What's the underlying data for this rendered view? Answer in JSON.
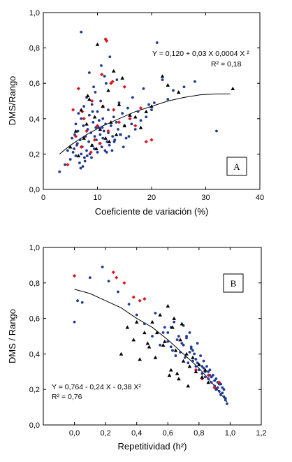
{
  "chart_data": [
    {
      "type": "scatter",
      "panel_label": "A",
      "xlabel": "Coeficiente de variación (%)",
      "ylabel": "DMS/Rango",
      "xlim": [
        0,
        40
      ],
      "ylim": [
        0.0,
        1.0
      ],
      "xticks": [
        "0",
        "10",
        "20",
        "30",
        "40"
      ],
      "yticks": [
        "0,0",
        "0,2",
        "0,4",
        "0,6",
        "0,8",
        "1,0"
      ],
      "equation": "Y = 0,120 + 0,03 X 0,0004 X ²",
      "r2": "R² = 0,18",
      "grid": false,
      "series": [
        {
          "marker": "circle",
          "color": "#1f3a93",
          "x": [
            3,
            4,
            4.5,
            5,
            5.3,
            5.5,
            5.8,
            6,
            6,
            6.2,
            6.4,
            6.5,
            6.7,
            6.8,
            7,
            7,
            7.2,
            7.4,
            7.5,
            7.6,
            7.8,
            8,
            8,
            8.2,
            8.4,
            8.5,
            8.6,
            8.8,
            9,
            9,
            9.2,
            9.4,
            9.5,
            9.6,
            9.8,
            10,
            10,
            10.2,
            10.4,
            10.5,
            10.6,
            10.8,
            11,
            11,
            11.2,
            11.4,
            11.5,
            11.6,
            11.8,
            12,
            12,
            12.2,
            12.5,
            12.8,
            13,
            13.2,
            13.5,
            13.8,
            14,
            14.3,
            14.6,
            15,
            15.3,
            15.6,
            16,
            16.5,
            17,
            17.5,
            18,
            18.5,
            19,
            19.5,
            20,
            21,
            22,
            23,
            24,
            26,
            28,
            32,
            7,
            8.5,
            9.3,
            10.7,
            12.3,
            13.6,
            11.3,
            6.9,
            7.7,
            8.9,
            9.7,
            10.3,
            11.7,
            13.1,
            14.8,
            15.8,
            6.3,
            7.3,
            8.1,
            9.1,
            10.9,
            12.7,
            14.2,
            16.3,
            5.7,
            20.5
          ],
          "y": [
            0.1,
            0.14,
            0.22,
            0.17,
            0.29,
            0.21,
            0.31,
            0.19,
            0.37,
            0.25,
            0.33,
            0.43,
            0.15,
            0.28,
            0.2,
            0.4,
            0.24,
            0.36,
            0.47,
            0.18,
            0.3,
            0.22,
            0.52,
            0.34,
            0.27,
            0.42,
            0.2,
            0.32,
            0.25,
            0.48,
            0.38,
            0.23,
            0.3,
            0.55,
            0.28,
            0.21,
            0.44,
            0.35,
            0.26,
            0.31,
            0.5,
            0.24,
            0.29,
            0.4,
            0.33,
            0.22,
            0.37,
            0.6,
            0.27,
            0.32,
            0.45,
            0.25,
            0.36,
            0.3,
            0.41,
            0.28,
            0.38,
            0.34,
            0.49,
            0.31,
            0.43,
            0.36,
            0.29,
            0.46,
            0.4,
            0.52,
            0.34,
            0.44,
            0.39,
            0.57,
            0.41,
            0.48,
            0.45,
            0.83,
            0.62,
            0.51,
            0.56,
            0.58,
            0.61,
            0.33,
            0.89,
            0.66,
            0.58,
            0.7,
            0.75,
            0.62,
            0.64,
            0.12,
            0.16,
            0.18,
            0.35,
            0.39,
            0.21,
            0.27,
            0.24,
            0.3,
            0.26,
            0.13,
            0.19,
            0.44,
            0.35,
            0.22,
            0.31,
            0.37,
            0.23,
            0.49
          ]
        },
        {
          "marker": "diamond",
          "color": "#e0141e",
          "x": [
            4.5,
            5.5,
            6,
            6.5,
            7,
            7.5,
            8,
            9,
            9.5,
            10,
            10.5,
            11,
            11.5,
            11.7,
            12,
            12.5,
            13,
            14,
            15,
            16,
            17,
            18,
            19,
            20,
            7.2,
            8.8,
            10.8,
            12.8
          ],
          "y": [
            0.14,
            0.45,
            0.3,
            0.57,
            0.24,
            0.4,
            0.33,
            0.5,
            0.28,
            0.36,
            0.26,
            0.47,
            0.85,
            0.84,
            0.33,
            0.6,
            0.45,
            0.38,
            0.58,
            0.4,
            0.36,
            0.46,
            0.27,
            0.28,
            0.44,
            0.21,
            0.65,
            0.61
          ]
        },
        {
          "marker": "triangle",
          "color": "#000000",
          "x": [
            5,
            6,
            6.5,
            7,
            7.5,
            8,
            8.5,
            9,
            9.5,
            10,
            10.5,
            11,
            11.5,
            12,
            12.5,
            13,
            13.5,
            14,
            15,
            16,
            17,
            18,
            19,
            20,
            22,
            23,
            25,
            35,
            9.8,
            12.2,
            14.6,
            8.2
          ],
          "y": [
            0.24,
            0.33,
            0.19,
            0.45,
            0.29,
            0.37,
            0.51,
            0.25,
            0.41,
            0.82,
            0.34,
            0.47,
            0.29,
            0.56,
            0.38,
            0.67,
            0.31,
            0.48,
            0.36,
            0.42,
            0.41,
            0.35,
            0.44,
            0.47,
            0.64,
            0.59,
            0.55,
            0.57,
            0.23,
            0.27,
            0.63,
            0.53
          ]
        }
      ],
      "trend": {
        "x": [
          3,
          5,
          8,
          11,
          14,
          17,
          20,
          23,
          26,
          29,
          32,
          34.5
        ],
        "y": [
          0.2,
          0.25,
          0.31,
          0.36,
          0.4,
          0.44,
          0.47,
          0.5,
          0.52,
          0.535,
          0.54,
          0.54
        ]
      }
    },
    {
      "type": "scatter",
      "panel_label": "B",
      "xlabel": "Repetitividad (h²)",
      "ylabel": "DMS / Rango",
      "xlim": [
        -0.2,
        1.2
      ],
      "ylim": [
        0.0,
        1.0
      ],
      "xticks": [
        "0,0",
        "0,2",
        "0,4",
        "0,6",
        "0,8",
        "1,0",
        "1,2"
      ],
      "xtick_values": [
        0.0,
        0.2,
        0.4,
        0.6,
        0.8,
        1.0,
        1.2
      ],
      "yticks": [
        "0,0",
        "0,2",
        "0,4",
        "0,6",
        "0,8",
        "1,0"
      ],
      "equation": "Y = 0,764 - 0,24 X - 0,38 X²",
      "r2": "R² = 0,76",
      "grid": false,
      "series": [
        {
          "marker": "circle",
          "color": "#1f3a93",
          "x": [
            0.0,
            0.02,
            0.05,
            0.1,
            0.18,
            0.22,
            0.28,
            0.35,
            0.4,
            0.45,
            0.5,
            0.52,
            0.55,
            0.58,
            0.6,
            0.62,
            0.64,
            0.66,
            0.68,
            0.7,
            0.71,
            0.72,
            0.73,
            0.74,
            0.75,
            0.76,
            0.77,
            0.78,
            0.79,
            0.8,
            0.81,
            0.82,
            0.83,
            0.84,
            0.85,
            0.86,
            0.87,
            0.88,
            0.89,
            0.9,
            0.91,
            0.92,
            0.93,
            0.94,
            0.95,
            0.96,
            0.97,
            0.98,
            0.65,
            0.69,
            0.74,
            0.78,
            0.82,
            0.86,
            0.9,
            0.93,
            0.96,
            0.72,
            0.76,
            0.8,
            0.84,
            0.88,
            0.92,
            0.95,
            0.62,
            0.67,
            0.7,
            0.75,
            0.79,
            0.83,
            0.87,
            0.91,
            0.94,
            0.97,
            0.57,
            0.6,
            0.63
          ],
          "y": [
            0.58,
            0.7,
            0.69,
            0.83,
            0.89,
            0.81,
            0.75,
            0.68,
            0.62,
            0.57,
            0.5,
            0.63,
            0.45,
            0.55,
            0.52,
            0.44,
            0.58,
            0.48,
            0.41,
            0.56,
            0.38,
            0.49,
            0.35,
            0.52,
            0.44,
            0.36,
            0.4,
            0.33,
            0.46,
            0.31,
            0.39,
            0.29,
            0.36,
            0.27,
            0.33,
            0.26,
            0.31,
            0.24,
            0.28,
            0.22,
            0.26,
            0.21,
            0.19,
            0.23,
            0.18,
            0.16,
            0.15,
            0.12,
            0.39,
            0.46,
            0.41,
            0.37,
            0.33,
            0.3,
            0.25,
            0.23,
            0.2,
            0.5,
            0.42,
            0.34,
            0.3,
            0.27,
            0.24,
            0.21,
            0.55,
            0.5,
            0.45,
            0.43,
            0.35,
            0.32,
            0.28,
            0.2,
            0.17,
            0.14,
            0.52,
            0.47,
            0.42
          ]
        },
        {
          "marker": "diamond",
          "color": "#e0141e",
          "x": [
            0.0,
            0.25,
            0.27,
            0.32,
            0.38,
            0.42,
            0.45,
            0.78,
            0.82,
            0.86,
            0.9,
            0.93
          ],
          "y": [
            0.84,
            0.86,
            0.83,
            0.8,
            0.72,
            0.7,
            0.71,
            0.31,
            0.26,
            0.28,
            0.21,
            0.24
          ]
        },
        {
          "marker": "triangle",
          "color": "#000000",
          "x": [
            0.3,
            0.34,
            0.38,
            0.42,
            0.45,
            0.48,
            0.5,
            0.52,
            0.55,
            0.57,
            0.6,
            0.62,
            0.63,
            0.65,
            0.66,
            0.68,
            0.7,
            0.72,
            0.74,
            0.76,
            0.78,
            0.8,
            0.82,
            0.84,
            0.86,
            0.4,
            0.47,
            0.53,
            0.58,
            0.61,
            0.67,
            0.73,
            0.64,
            0.69
          ],
          "y": [
            0.4,
            0.55,
            0.48,
            0.37,
            0.52,
            0.44,
            0.58,
            0.38,
            0.62,
            0.45,
            0.67,
            0.31,
            0.55,
            0.42,
            0.29,
            0.48,
            0.36,
            0.4,
            0.33,
            0.38,
            0.3,
            0.34,
            0.27,
            0.31,
            0.24,
            0.58,
            0.46,
            0.52,
            0.47,
            0.28,
            0.26,
            0.22,
            0.6,
            0.57
          ]
        }
      ],
      "trend": {
        "x": [
          0.0,
          0.1,
          0.2,
          0.3,
          0.4,
          0.5,
          0.6,
          0.7,
          0.8,
          0.9,
          0.98
        ],
        "y": [
          0.764,
          0.74,
          0.7,
          0.66,
          0.6,
          0.55,
          0.48,
          0.4,
          0.32,
          0.22,
          0.13
        ]
      }
    }
  ]
}
